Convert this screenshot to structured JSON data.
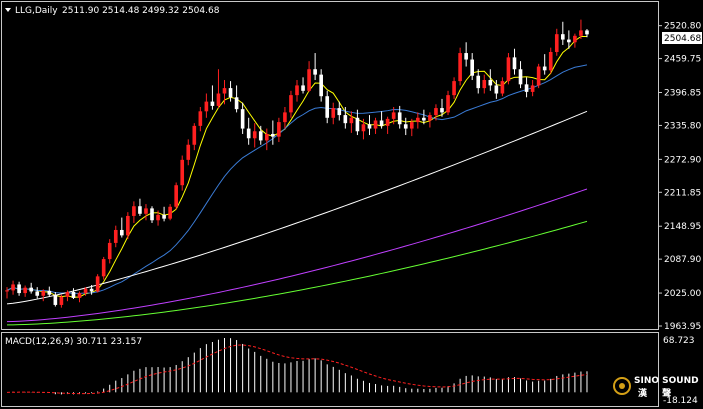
{
  "header": {
    "symbol": "LLG,Daily",
    "ohlc": "2511.90 2514.48 2499.32 2504.68"
  },
  "macd_header": {
    "label": "MACD(12,26,9) 30.711 23.157"
  },
  "price_axis": {
    "ticks": [
      "2520.80",
      "2459.75",
      "2396.85",
      "2335.80",
      "2272.90",
      "2211.85",
      "2148.95",
      "2087.90",
      "2025.00",
      "1963.95"
    ],
    "current_price": "2504.68"
  },
  "macd_axis": {
    "top": "68.723",
    "bottom": "-18.124"
  },
  "watermark": {
    "line1": "SINO SOUND",
    "line2": "漢 聲"
  },
  "colors": {
    "background": "#000000",
    "frame": "#c8c8c8",
    "bull_candle": "#ff2020",
    "bear_candle": "#ffffff",
    "ma_fast": "#ffff00",
    "ma_mid": "#3a7bd5",
    "ma_slow": "#ffffff",
    "ma_long": "#c040ff",
    "ma_longest": "#66ff33",
    "macd_hist": "#ffffff",
    "macd_signal": "#ff2020"
  },
  "chart_data": {
    "type": "candlestick",
    "timeframe": "Daily",
    "symbol": "LLG",
    "ylim": [
      1963.95,
      2535
    ],
    "candles": [
      [
        2028,
        2036,
        2015,
        2030
      ],
      [
        2030,
        2048,
        2022,
        2041
      ],
      [
        2041,
        2046,
        2020,
        2025
      ],
      [
        2025,
        2039,
        2018,
        2035
      ],
      [
        2035,
        2044,
        2024,
        2028
      ],
      [
        2028,
        2036,
        2015,
        2020
      ],
      [
        2020,
        2032,
        2010,
        2029
      ],
      [
        2029,
        2037,
        2018,
        2022
      ],
      [
        2022,
        2027,
        2000,
        2003
      ],
      [
        2003,
        2022,
        1998,
        2018
      ],
      [
        2018,
        2030,
        2010,
        2027
      ],
      [
        2027,
        2034,
        2014,
        2016
      ],
      [
        2016,
        2028,
        2008,
        2025
      ],
      [
        2025,
        2036,
        2020,
        2033
      ],
      [
        2033,
        2040,
        2022,
        2028
      ],
      [
        2028,
        2060,
        2026,
        2056
      ],
      [
        2056,
        2092,
        2050,
        2088
      ],
      [
        2088,
        2125,
        2080,
        2118
      ],
      [
        2118,
        2150,
        2110,
        2142
      ],
      [
        2142,
        2165,
        2128,
        2132
      ],
      [
        2132,
        2175,
        2125,
        2168
      ],
      [
        2168,
        2195,
        2155,
        2186
      ],
      [
        2186,
        2200,
        2168,
        2172
      ],
      [
        2172,
        2190,
        2160,
        2182
      ],
      [
        2182,
        2186,
        2155,
        2160
      ],
      [
        2160,
        2178,
        2150,
        2170
      ],
      [
        2170,
        2185,
        2158,
        2163
      ],
      [
        2163,
        2190,
        2160,
        2185
      ],
      [
        2185,
        2230,
        2180,
        2225
      ],
      [
        2225,
        2280,
        2215,
        2272
      ],
      [
        2272,
        2310,
        2262,
        2300
      ],
      [
        2300,
        2340,
        2290,
        2335
      ],
      [
        2335,
        2370,
        2325,
        2362
      ],
      [
        2362,
        2395,
        2350,
        2380
      ],
      [
        2380,
        2410,
        2365,
        2372
      ],
      [
        2372,
        2440,
        2368,
        2395
      ],
      [
        2395,
        2420,
        2375,
        2405
      ],
      [
        2405,
        2418,
        2380,
        2388
      ],
      [
        2388,
        2410,
        2360,
        2366
      ],
      [
        2366,
        2378,
        2320,
        2330
      ],
      [
        2330,
        2350,
        2300,
        2312
      ],
      [
        2312,
        2340,
        2295,
        2325
      ],
      [
        2325,
        2335,
        2300,
        2308
      ],
      [
        2308,
        2330,
        2290,
        2320
      ],
      [
        2320,
        2345,
        2300,
        2315
      ],
      [
        2315,
        2350,
        2305,
        2342
      ],
      [
        2342,
        2370,
        2330,
        2360
      ],
      [
        2360,
        2400,
        2350,
        2392
      ],
      [
        2392,
        2420,
        2380,
        2410
      ],
      [
        2410,
        2425,
        2395,
        2400
      ],
      [
        2400,
        2455,
        2398,
        2440
      ],
      [
        2440,
        2470,
        2420,
        2430
      ],
      [
        2430,
        2440,
        2380,
        2390
      ],
      [
        2390,
        2400,
        2340,
        2350
      ],
      [
        2350,
        2378,
        2338,
        2368
      ],
      [
        2368,
        2380,
        2345,
        2355
      ],
      [
        2355,
        2370,
        2330,
        2340
      ],
      [
        2340,
        2362,
        2322,
        2350
      ],
      [
        2350,
        2365,
        2318,
        2325
      ],
      [
        2325,
        2348,
        2310,
        2338
      ],
      [
        2338,
        2355,
        2318,
        2330
      ],
      [
        2330,
        2350,
        2320,
        2345
      ],
      [
        2345,
        2362,
        2330,
        2335
      ],
      [
        2335,
        2352,
        2320,
        2348
      ],
      [
        2348,
        2370,
        2338,
        2360
      ],
      [
        2360,
        2372,
        2330,
        2338
      ],
      [
        2338,
        2350,
        2318,
        2330
      ],
      [
        2330,
        2348,
        2316,
        2342
      ],
      [
        2342,
        2360,
        2330,
        2350
      ],
      [
        2350,
        2365,
        2338,
        2345
      ],
      [
        2345,
        2360,
        2332,
        2355
      ],
      [
        2355,
        2375,
        2345,
        2368
      ],
      [
        2368,
        2385,
        2352,
        2360
      ],
      [
        2360,
        2400,
        2355,
        2392
      ],
      [
        2392,
        2425,
        2385,
        2418
      ],
      [
        2418,
        2480,
        2410,
        2470
      ],
      [
        2470,
        2490,
        2445,
        2458
      ],
      [
        2458,
        2470,
        2420,
        2428
      ],
      [
        2428,
        2440,
        2395,
        2405
      ],
      [
        2405,
        2430,
        2395,
        2420
      ],
      [
        2420,
        2440,
        2400,
        2410
      ],
      [
        2410,
        2420,
        2385,
        2395
      ],
      [
        2395,
        2425,
        2390,
        2418
      ],
      [
        2418,
        2470,
        2412,
        2462
      ],
      [
        2462,
        2478,
        2430,
        2440
      ],
      [
        2440,
        2455,
        2405,
        2412
      ],
      [
        2412,
        2425,
        2388,
        2398
      ],
      [
        2398,
        2420,
        2390,
        2410
      ],
      [
        2410,
        2450,
        2405,
        2445
      ],
      [
        2445,
        2468,
        2430,
        2438
      ],
      [
        2438,
        2480,
        2432,
        2472
      ],
      [
        2472,
        2515,
        2465,
        2505
      ],
      [
        2505,
        2528,
        2485,
        2495
      ],
      [
        2495,
        2512,
        2478,
        2490
      ],
      [
        2490,
        2506,
        2480,
        2502
      ],
      [
        2502,
        2532,
        2496,
        2512
      ],
      [
        2511.9,
        2514.48,
        2499.32,
        2504.68
      ]
    ],
    "macd": {
      "params": "12,26,9",
      "value": 30.711,
      "signal": 23.157,
      "ylim": [
        -18.124,
        68.723
      ]
    }
  }
}
